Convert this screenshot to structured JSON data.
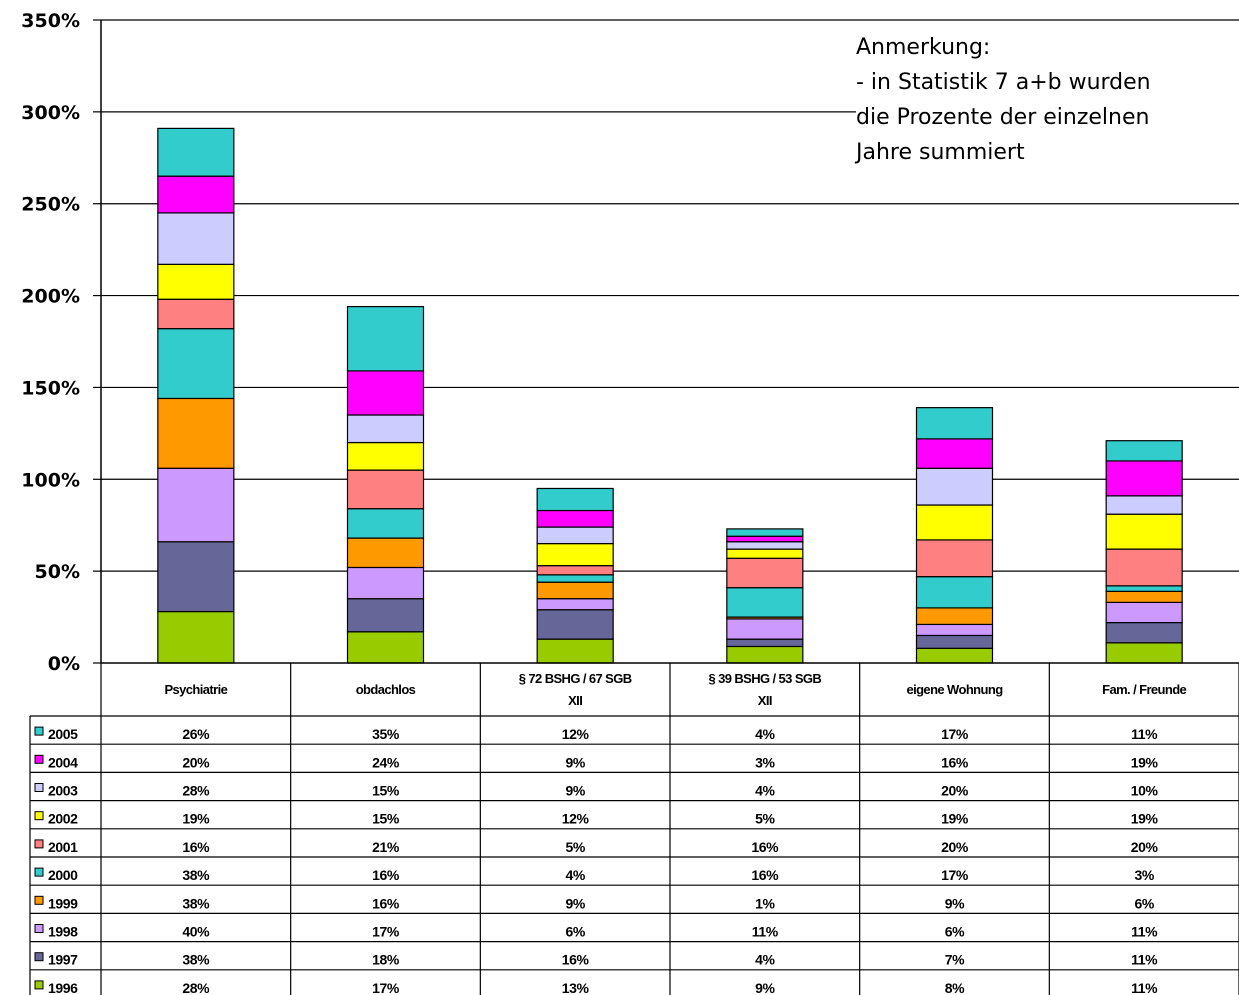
{
  "chart_data": {
    "type": "bar",
    "stacked": true,
    "title": "",
    "xlabel": "",
    "ylabel": "",
    "ylim": [
      0,
      3.5
    ],
    "yticks": [
      "0%",
      "50%",
      "100%",
      "150%",
      "200%",
      "250%",
      "300%",
      "350%"
    ],
    "grid": true,
    "legend": "table-left",
    "categories": [
      [
        "Psychiatrie"
      ],
      [
        "obdachlos"
      ],
      [
        "§ 72 BSHG / 67 SGB",
        "XII"
      ],
      [
        "§ 39 BSHG / 53 SGB",
        "XII"
      ],
      [
        "eigene Wohnung"
      ],
      [
        "Fam. / Freunde"
      ]
    ],
    "series": [
      {
        "name": "2005",
        "color": "#33CCCC",
        "labels": [
          "26%",
          "35%",
          "12%",
          "4%",
          "17%",
          "11%"
        ],
        "values": [
          0.26,
          0.35,
          0.12,
          0.04,
          0.17,
          0.11
        ]
      },
      {
        "name": "2004",
        "color": "#FF00FF",
        "labels": [
          "20%",
          "24%",
          "9%",
          "3%",
          "16%",
          "19%"
        ],
        "values": [
          0.2,
          0.24,
          0.09,
          0.03,
          0.16,
          0.19
        ]
      },
      {
        "name": "2003",
        "color": "#CCCCFF",
        "labels": [
          "28%",
          "15%",
          "9%",
          "4%",
          "20%",
          "10%"
        ],
        "values": [
          0.28,
          0.15,
          0.09,
          0.04,
          0.2,
          0.1
        ]
      },
      {
        "name": "2002",
        "color": "#FFFF00",
        "labels": [
          "19%",
          "15%",
          "12%",
          "5%",
          "19%",
          "19%"
        ],
        "values": [
          0.19,
          0.15,
          0.12,
          0.05,
          0.19,
          0.19
        ]
      },
      {
        "name": "2001",
        "color": "#FF8080",
        "labels": [
          "16%",
          "21%",
          "5%",
          "16%",
          "20%",
          "20%"
        ],
        "values": [
          0.16,
          0.21,
          0.05,
          0.16,
          0.2,
          0.2
        ]
      },
      {
        "name": "2000",
        "color": "#33CCCC",
        "labels": [
          "38%",
          "16%",
          "4%",
          "16%",
          "17%",
          "3%"
        ],
        "values": [
          0.38,
          0.16,
          0.04,
          0.16,
          0.17,
          0.03
        ]
      },
      {
        "name": "1999",
        "color": "#FF9900",
        "labels": [
          "38%",
          "16%",
          "9%",
          "1%",
          "9%",
          "6%"
        ],
        "values": [
          0.38,
          0.16,
          0.09,
          0.01,
          0.09,
          0.06
        ]
      },
      {
        "name": "1998",
        "color": "#CC99FF",
        "labels": [
          "40%",
          "17%",
          "6%",
          "11%",
          "6%",
          "11%"
        ],
        "values": [
          0.4,
          0.17,
          0.06,
          0.11,
          0.06,
          0.11
        ]
      },
      {
        "name": "1997",
        "color": "#666699",
        "labels": [
          "38%",
          "18%",
          "16%",
          "4%",
          "7%",
          "11%"
        ],
        "values": [
          0.38,
          0.18,
          0.16,
          0.04,
          0.07,
          0.11
        ]
      },
      {
        "name": "1996",
        "color": "#99CC00",
        "labels": [
          "28%",
          "17%",
          "13%",
          "9%",
          "8%",
          "11%"
        ],
        "values": [
          0.28,
          0.17,
          0.13,
          0.09,
          0.08,
          0.11
        ]
      }
    ]
  },
  "note": {
    "lines": [
      " Anmerkung:",
      "- in Statistik 7 a+b wurden",
      "die Prozente der einzelnen",
      "Jahre summiert"
    ]
  }
}
